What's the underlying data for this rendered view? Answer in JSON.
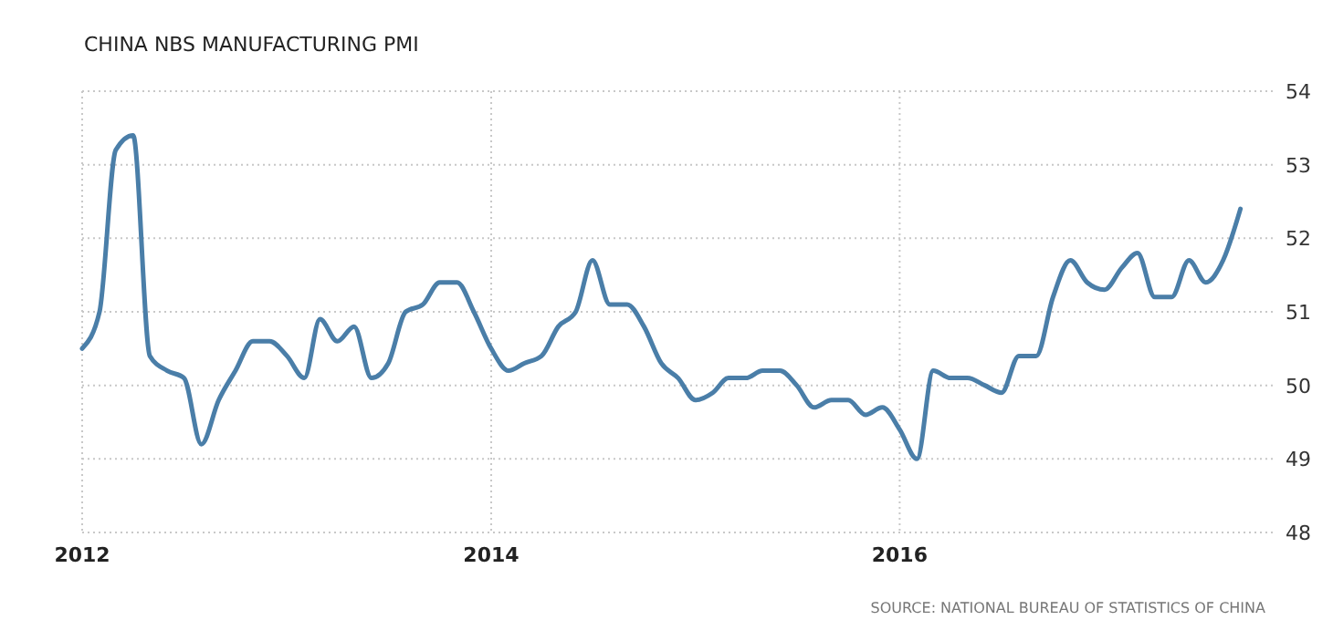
{
  "chart_data": {
    "type": "line",
    "title": "CHINA NBS MANUFACTURING PMI",
    "annotations": [
      "SOURCE: NATIONAL BUREAU OF STATISTICS OF CHINA"
    ],
    "x": [
      "2012-01",
      "2012-02",
      "2012-03",
      "2012-04",
      "2012-05",
      "2012-06",
      "2012-07",
      "2012-08",
      "2012-09",
      "2012-10",
      "2012-11",
      "2012-12",
      "2013-01",
      "2013-02",
      "2013-03",
      "2013-04",
      "2013-05",
      "2013-06",
      "2013-07",
      "2013-08",
      "2013-09",
      "2013-10",
      "2013-11",
      "2013-12",
      "2014-01",
      "2014-02",
      "2014-03",
      "2014-04",
      "2014-05",
      "2014-06",
      "2014-07",
      "2014-08",
      "2014-09",
      "2014-10",
      "2014-11",
      "2014-12",
      "2015-01",
      "2015-02",
      "2015-03",
      "2015-04",
      "2015-05",
      "2015-06",
      "2015-07",
      "2015-08",
      "2015-09",
      "2015-10",
      "2015-11",
      "2015-12",
      "2016-01",
      "2016-02",
      "2016-03",
      "2016-04",
      "2016-05",
      "2016-06",
      "2016-07",
      "2016-08",
      "2016-09",
      "2016-10",
      "2016-11",
      "2016-12",
      "2017-01",
      "2017-02",
      "2017-03",
      "2017-04",
      "2017-05",
      "2017-06",
      "2017-07",
      "2017-08",
      "2017-09"
    ],
    "series": [
      {
        "color": "#4a7ea8",
        "values": [
          50.5,
          51.0,
          53.2,
          53.4,
          50.4,
          50.2,
          50.1,
          49.2,
          49.8,
          50.2,
          50.6,
          50.6,
          50.4,
          50.1,
          50.9,
          50.6,
          50.8,
          50.1,
          50.3,
          51.0,
          51.1,
          51.4,
          51.4,
          51.0,
          50.5,
          50.2,
          50.3,
          50.4,
          50.8,
          51.0,
          51.7,
          51.1,
          51.1,
          50.8,
          50.3,
          50.1,
          49.8,
          49.9,
          50.1,
          50.1,
          50.2,
          50.2,
          50.0,
          49.7,
          49.8,
          49.8,
          49.6,
          49.7,
          49.4,
          49.0,
          50.2,
          50.1,
          50.1,
          50.0,
          49.9,
          50.4,
          50.4,
          51.2,
          51.7,
          51.4,
          51.3,
          51.6,
          51.8,
          51.2,
          51.2,
          51.7,
          51.4,
          51.7,
          52.4
        ]
      }
    ],
    "xlim": [
      "2012-01",
      "2017-11"
    ],
    "xticks": [
      {
        "value": "2012-01",
        "label": "2012"
      },
      {
        "value": "2014-01",
        "label": "2014"
      },
      {
        "value": "2016-01",
        "label": "2016"
      }
    ],
    "ylim": [
      48,
      54
    ],
    "yticks": [
      48,
      49,
      50,
      51,
      52,
      53,
      54
    ],
    "grid": true,
    "line_style": "solid",
    "marker": "none"
  }
}
